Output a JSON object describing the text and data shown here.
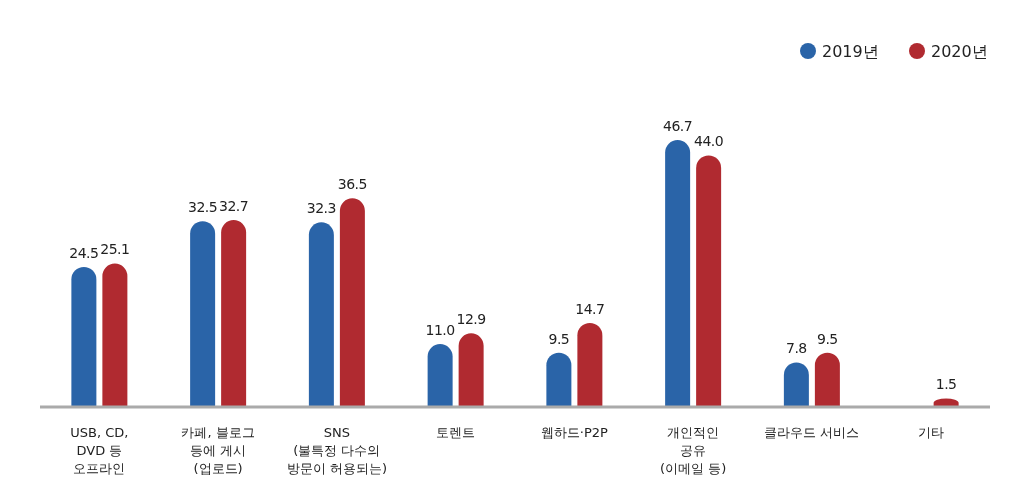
{
  "chart_data": {
    "type": "bar",
    "categories": [
      "USB, CD,\nDVD 등\n오프라인",
      "카페, 블로그\n등에 게시\n(업로드)",
      "SNS\n(불특정 다수의\n방문이 허용되는)",
      "토렌트",
      "웹하드·P2P",
      "개인적인\n공유\n(이메일 등)",
      "클라우드 서비스",
      "기타"
    ],
    "series": [
      {
        "name": "2019년",
        "color": "#2a64a8",
        "values": [
          24.5,
          32.5,
          32.3,
          11.0,
          9.5,
          46.7,
          7.8,
          null
        ],
        "value_labels": [
          "24.5",
          "32.5",
          "32.3",
          "11.0",
          "9.5",
          "46.7",
          "7.8",
          null
        ]
      },
      {
        "name": "2020년",
        "color": "#b02a30",
        "values": [
          25.1,
          32.7,
          36.5,
          12.9,
          14.7,
          44.0,
          9.5,
          1.5
        ],
        "value_labels": [
          "25.1",
          "32.7",
          "36.5",
          "12.9",
          "14.7",
          "44.0",
          "9.5",
          "1.5"
        ]
      }
    ],
    "legend": "top right"
  }
}
